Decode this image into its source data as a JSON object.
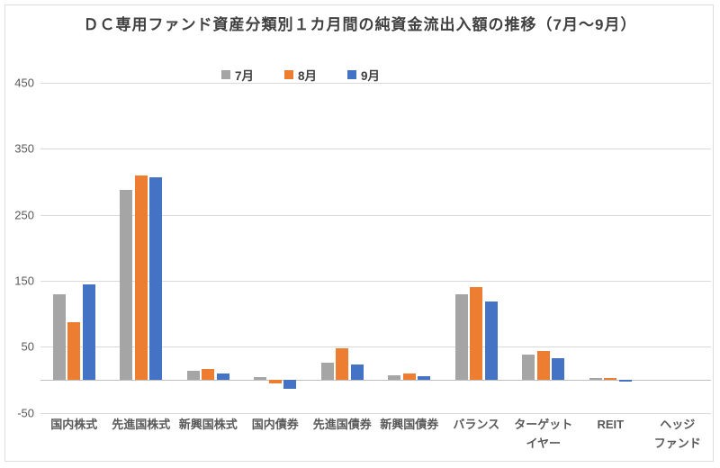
{
  "title": "ＤＣ専用ファンド資産分類別１カ月間の純資金流出入額の推移（7月～9月）",
  "chart_data": {
    "type": "bar",
    "title": "ＤＣ専用ファンド資産分類別１カ月間の純資金流出入額の推移（7月～9月）",
    "categories": [
      "国内株式",
      "先進国株式",
      "新興国株式",
      "国内債券",
      "先進国債券",
      "新興国債券",
      "バランス",
      "ターゲット\nイヤー",
      "REIT",
      "ヘッジ\nファンド"
    ],
    "series": [
      {
        "name": "7月",
        "color": "#a5a5a5",
        "values": [
          130,
          288,
          13,
          4,
          26,
          7,
          130,
          38,
          2,
          0
        ]
      },
      {
        "name": "8月",
        "color": "#ed7d31",
        "values": [
          87,
          310,
          16,
          -5,
          47,
          9,
          140,
          43,
          2,
          0
        ]
      },
      {
        "name": "9月",
        "color": "#4472c4",
        "values": [
          144,
          307,
          10,
          -14,
          23,
          5,
          118,
          33,
          -3,
          0
        ]
      }
    ],
    "ylim": [
      -50,
      450
    ],
    "yticks": [
      450,
      350,
      250,
      150,
      50,
      -50
    ],
    "grid": true,
    "legend_position": "top"
  },
  "colors": {
    "grid": "#d9d9d9",
    "zero_line": "#bfbfbf",
    "axis_text": "#595959",
    "title_text": "#404040",
    "border": "#dcdcdc"
  }
}
